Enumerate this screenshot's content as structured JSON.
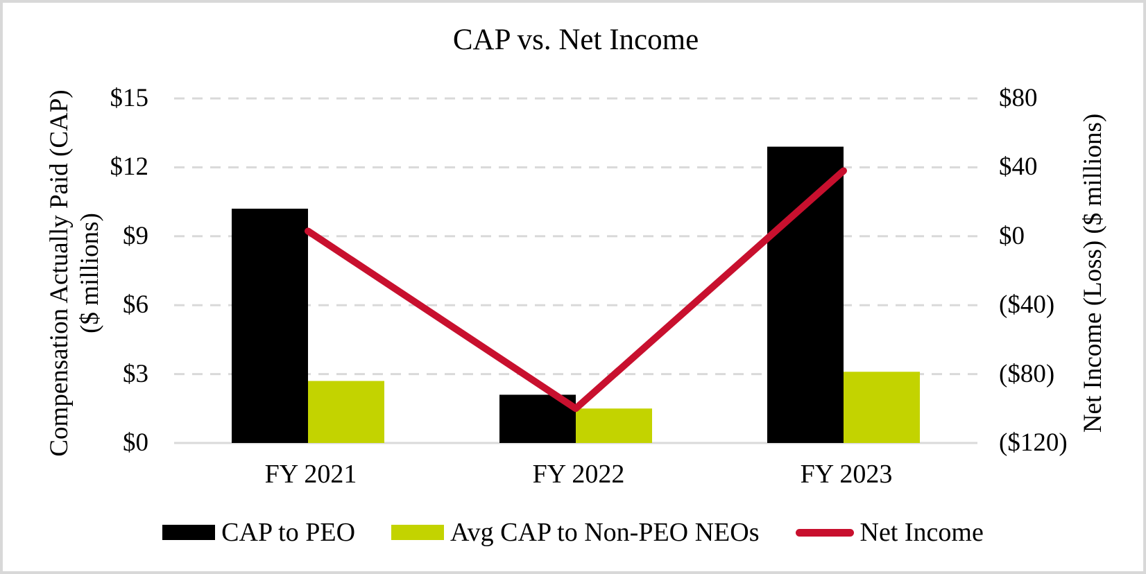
{
  "title": "CAP vs. Net Income",
  "chart_data": {
    "type": "bar",
    "subtype": "combo-bar-line-dual-axis",
    "categories": [
      "FY 2021",
      "FY 2022",
      "FY 2023"
    ],
    "series": [
      {
        "name": "CAP to PEO",
        "type": "bar",
        "axis": "left",
        "color": "#000000",
        "values": [
          10.2,
          2.1,
          12.9
        ]
      },
      {
        "name": "Avg CAP to Non-PEO NEOs",
        "type": "bar",
        "axis": "left",
        "color": "#c3d300",
        "values": [
          2.7,
          1.5,
          3.1
        ]
      },
      {
        "name": "Net Income",
        "type": "line",
        "axis": "right",
        "color": "#c8102e",
        "values": [
          3,
          -100,
          38
        ]
      }
    ],
    "left_axis": {
      "title_line1": "Compensation Actually Paid (CAP)",
      "title_line2": "($ millions)",
      "tick_labels": [
        "$15",
        "$12",
        "$9",
        "$6",
        "$3",
        "$0"
      ],
      "min": 0,
      "max": 15,
      "step": 3
    },
    "right_axis": {
      "title": "Net Income (Loss) ($ millions)",
      "tick_labels": [
        "$80",
        "$40",
        "$0",
        "($40)",
        "($80)",
        "($120)"
      ],
      "min": -120,
      "max": 80,
      "step": 40
    },
    "grid": "horizontal dashed",
    "legend_position": "bottom"
  },
  "colors": {
    "background": "#ffffff",
    "border": "#d8d8d8",
    "gridline": "#d9d9d9",
    "baseline": "#d9d9d9",
    "text": "#000000"
  }
}
